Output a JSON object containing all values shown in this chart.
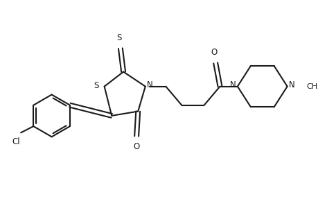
{
  "bg_color": "#ffffff",
  "line_color": "#1a1a1a",
  "line_width": 1.5,
  "fig_width": 4.6,
  "fig_height": 3.0,
  "dpi": 100,
  "font_size": 8.5,
  "xlim": [
    0,
    10
  ],
  "ylim": [
    0,
    6.5
  ]
}
